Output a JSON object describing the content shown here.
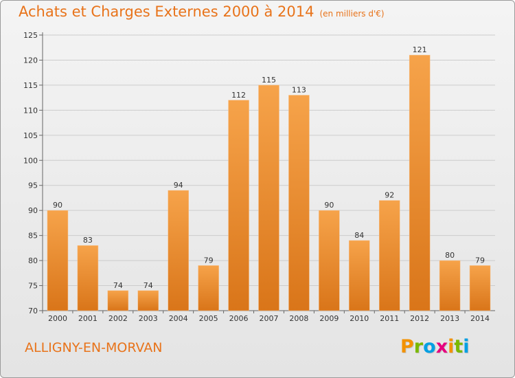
{
  "title": "Achats et Charges Externes 2000 à 2014",
  "subtitle": "(en milliers d'€)",
  "commune": "ALLIGNY-EN-MORVAN",
  "logo": {
    "letters": [
      "P",
      "r",
      "o",
      "x",
      "i",
      "t",
      "i"
    ],
    "colors": [
      "#f39200",
      "#7ab800",
      "#009fe3",
      "#e6007e",
      "#f39200",
      "#7ab800",
      "#009fe3"
    ]
  },
  "colors": {
    "accent": "#e8731a",
    "bar_top": "#f6a34a",
    "bar_bottom": "#d97519",
    "grid": "#cccccc"
  },
  "chart_data": {
    "type": "bar",
    "categories": [
      "2000",
      "2001",
      "2002",
      "2003",
      "2004",
      "2005",
      "2006",
      "2007",
      "2008",
      "2009",
      "2010",
      "2011",
      "2012",
      "2013",
      "2014"
    ],
    "values": [
      90,
      83,
      74,
      74,
      94,
      79,
      112,
      115,
      113,
      90,
      84,
      92,
      121,
      80,
      79
    ],
    "ylim": [
      70,
      125
    ],
    "yticks": [
      70,
      75,
      80,
      85,
      90,
      95,
      100,
      105,
      110,
      115,
      120,
      125
    ],
    "grid": true
  }
}
